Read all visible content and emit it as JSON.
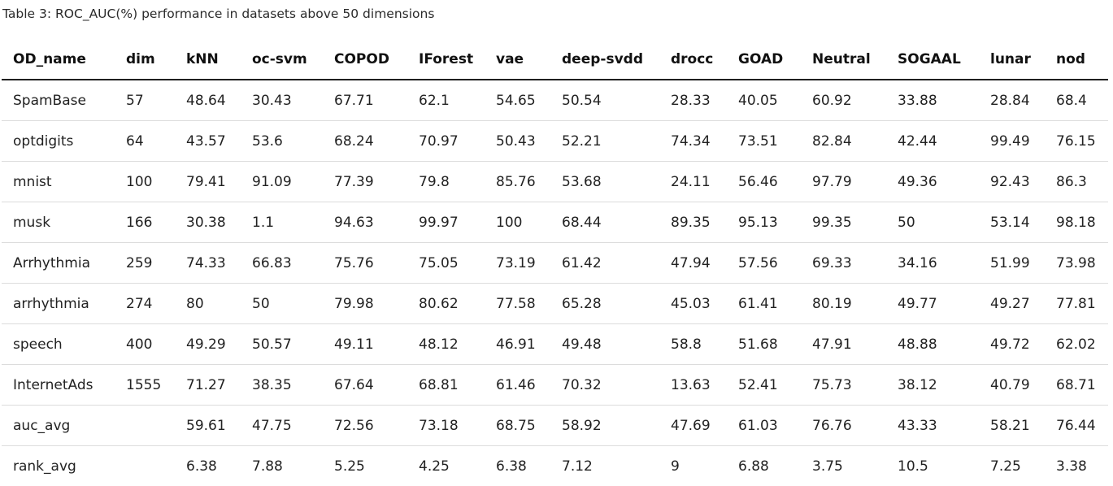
{
  "caption": "Table 3: ROC_AUC(%) performance in datasets above 50 dimensions",
  "chart_data": {
    "type": "table",
    "title": "Table 3: ROC_AUC(%) performance in datasets above 50 dimensions",
    "columns": [
      "OD_name",
      "dim",
      "kNN",
      "oc-svm",
      "COPOD",
      "IForest",
      "vae",
      "deep-svdd",
      "drocc",
      "GOAD",
      "Neutral",
      "SOGAAL",
      "lunar",
      "nod"
    ],
    "rows": [
      [
        "SpamBase",
        "57",
        "48.64",
        "30.43",
        "67.71",
        "62.1",
        "54.65",
        "50.54",
        "28.33",
        "40.05",
        "60.92",
        "33.88",
        "28.84",
        "68.4"
      ],
      [
        "optdigits",
        "64",
        "43.57",
        "53.6",
        "68.24",
        "70.97",
        "50.43",
        "52.21",
        "74.34",
        "73.51",
        "82.84",
        "42.44",
        "99.49",
        "76.15"
      ],
      [
        "mnist",
        "100",
        "79.41",
        "91.09",
        "77.39",
        "79.8",
        "85.76",
        "53.68",
        "24.11",
        "56.46",
        "97.79",
        "49.36",
        "92.43",
        "86.3"
      ],
      [
        "musk",
        "166",
        "30.38",
        "1.1",
        "94.63",
        "99.97",
        "100",
        "68.44",
        "89.35",
        "95.13",
        "99.35",
        "50",
        "53.14",
        "98.18"
      ],
      [
        "Arrhythmia",
        "259",
        "74.33",
        "66.83",
        "75.76",
        "75.05",
        "73.19",
        "61.42",
        "47.94",
        "57.56",
        "69.33",
        "34.16",
        "51.99",
        "73.98"
      ],
      [
        "arrhythmia",
        "274",
        "80",
        "50",
        "79.98",
        "80.62",
        "77.58",
        "65.28",
        "45.03",
        "61.41",
        "80.19",
        "49.77",
        "49.27",
        "77.81"
      ],
      [
        "speech",
        "400",
        "49.29",
        "50.57",
        "49.11",
        "48.12",
        "46.91",
        "49.48",
        "58.8",
        "51.68",
        "47.91",
        "48.88",
        "49.72",
        "62.02"
      ],
      [
        "InternetAds",
        "1555",
        "71.27",
        "38.35",
        "67.64",
        "68.81",
        "61.46",
        "70.32",
        "13.63",
        "52.41",
        "75.73",
        "38.12",
        "40.79",
        "68.71"
      ],
      [
        "auc_avg",
        "",
        "59.61",
        "47.75",
        "72.56",
        "73.18",
        "68.75",
        "58.92",
        "47.69",
        "61.03",
        "76.76",
        "43.33",
        "58.21",
        "76.44"
      ],
      [
        "rank_avg",
        "",
        "6.38",
        "7.88",
        "5.25",
        "4.25",
        "6.38",
        "7.12",
        "9",
        "6.88",
        "3.75",
        "10.5",
        "7.25",
        "3.38"
      ]
    ]
  }
}
